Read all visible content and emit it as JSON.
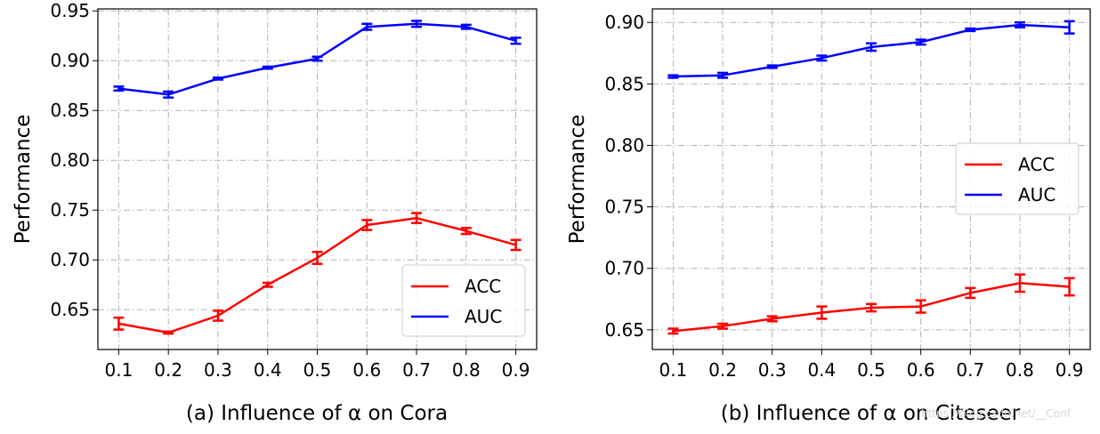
{
  "chart_data": [
    {
      "type": "line",
      "title": "",
      "caption": "(a) Influence of α on Cora",
      "xlabel": "",
      "ylabel": "Performance",
      "categories": [
        "0.1",
        "0.2",
        "0.3",
        "0.4",
        "0.5",
        "0.6",
        "0.7",
        "0.8",
        "0.9"
      ],
      "x": [
        0.1,
        0.2,
        0.3,
        0.4,
        0.5,
        0.6,
        0.7,
        0.8,
        0.9
      ],
      "xlim": [
        0.058,
        0.942
      ],
      "ylim": [
        0.61,
        0.952
      ],
      "yticks": [
        0.65,
        0.7,
        0.75,
        0.8,
        0.85,
        0.9,
        0.95
      ],
      "ytick_labels": [
        "0.65",
        "0.70",
        "0.75",
        "0.80",
        "0.85",
        "0.90",
        "0.95"
      ],
      "grid": true,
      "legend_position": "bottom-right",
      "series": [
        {
          "name": "ACC",
          "color": "#ff0000",
          "values": [
            0.636,
            0.627,
            0.644,
            0.675,
            0.702,
            0.735,
            0.742,
            0.729,
            0.715
          ],
          "errors": [
            0.006,
            0.001,
            0.005,
            0.002,
            0.006,
            0.005,
            0.005,
            0.003,
            0.005
          ]
        },
        {
          "name": "AUC",
          "color": "#0000ff",
          "values": [
            0.872,
            0.866,
            0.882,
            0.893,
            0.902,
            0.934,
            0.937,
            0.934,
            0.92
          ],
          "errors": [
            0.002,
            0.003,
            0.001,
            0.001,
            0.002,
            0.003,
            0.003,
            0.002,
            0.003
          ]
        }
      ]
    },
    {
      "type": "line",
      "title": "",
      "caption": "(b) Influence of α on Citeseer",
      "xlabel": "",
      "ylabel": "Performance",
      "categories": [
        "0.1",
        "0.2",
        "0.3",
        "0.4",
        "0.5",
        "0.6",
        "0.7",
        "0.8",
        "0.9"
      ],
      "x": [
        0.1,
        0.2,
        0.3,
        0.4,
        0.5,
        0.6,
        0.7,
        0.8,
        0.9
      ],
      "xlim": [
        0.058,
        0.942
      ],
      "ylim": [
        0.634,
        0.911
      ],
      "yticks": [
        0.65,
        0.7,
        0.75,
        0.8,
        0.85,
        0.9
      ],
      "ytick_labels": [
        "0.65",
        "0.70",
        "0.75",
        "0.80",
        "0.85",
        "0.90"
      ],
      "grid": true,
      "legend_position": "center-right",
      "series": [
        {
          "name": "ACC",
          "color": "#ff0000",
          "values": [
            0.649,
            0.653,
            0.659,
            0.664,
            0.668,
            0.669,
            0.68,
            0.688,
            0.685
          ],
          "errors": [
            0.002,
            0.002,
            0.002,
            0.005,
            0.003,
            0.005,
            0.004,
            0.007,
            0.007
          ]
        },
        {
          "name": "AUC",
          "color": "#0000ff",
          "values": [
            0.856,
            0.857,
            0.864,
            0.871,
            0.88,
            0.884,
            0.894,
            0.898,
            0.896
          ],
          "errors": [
            0.001,
            0.002,
            0.001,
            0.002,
            0.003,
            0.002,
            0.001,
            0.002,
            0.005
          ]
        }
      ]
    }
  ],
  "watermark": "https://blog.csdn.net/__Conf"
}
